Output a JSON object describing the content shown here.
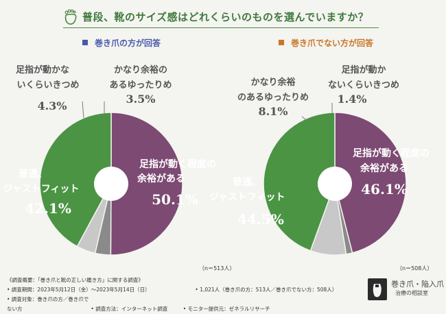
{
  "title": "普段、靴のサイズ感はどれくらいのものを選んでいますか？",
  "legend_left": "巻き爪の方が回答",
  "legend_right": "巻き爪でない方が回答",
  "colors": {
    "accent_green": "#3f7a3c",
    "slice_purple": "#7c4a72",
    "slice_green": "#4a9444",
    "slice_light": "#c8c8c8",
    "slice_dark": "#8a8a8a"
  },
  "chart_data": [
    {
      "type": "pie",
      "title": "巻き爪の方が回答",
      "n_label": "（n＝513人）",
      "slices": [
        {
          "label": "足指が動く程度の余裕がある",
          "value": 50.1,
          "value_text": "50.1%",
          "color": "#7c4a72"
        },
        {
          "label": "普通、ジャストフィット",
          "value": 42.1,
          "value_text": "42.1%",
          "color": "#4a9444"
        },
        {
          "label": "足指が動かないくらいきつめ",
          "value": 4.3,
          "value_text": "4.3%",
          "color": "#c8c8c8"
        },
        {
          "label": "かなり余裕のあるゆったりめ",
          "value": 3.5,
          "value_text": "3.5%",
          "color": "#8a8a8a"
        }
      ]
    },
    {
      "type": "pie",
      "title": "巻き爪でない方が回答",
      "n_label": "（n＝508人）",
      "slices": [
        {
          "label": "足指が動く程度の余裕がある",
          "value": 46.1,
          "value_text": "46.1%",
          "color": "#7c4a72"
        },
        {
          "label": "普通、ジャストフィット",
          "value": 44.5,
          "value_text": "44.5%",
          "color": "#4a9444"
        },
        {
          "label": "かなり余裕のあるゆったりめ",
          "value": 8.1,
          "value_text": "8.1%",
          "color": "#c8c8c8"
        },
        {
          "label": "足指が動かないくらいきつめ",
          "value": 1.4,
          "value_text": "1.4%",
          "color": "#8a8a8a"
        }
      ]
    }
  ],
  "footer": {
    "line1": "《調査概要：「巻き爪と靴の正しい履き方」に関する調査》",
    "period": "• 調査期間：2023年5月12日（金）〜2023年5月14日（日）",
    "count": "• 1,021人（巻き爪の方：513人／巻き爪でない方：508人）",
    "target": "• 調査対象：巻き爪の方／巻き爪でない方",
    "method": "• 調査方法：インターネット調査",
    "provider": "• モニター提供元：ゼネラルリサーチ"
  },
  "logo": {
    "line1": "巻き爪・陥入爪",
    "line2": "治療の相談室"
  }
}
